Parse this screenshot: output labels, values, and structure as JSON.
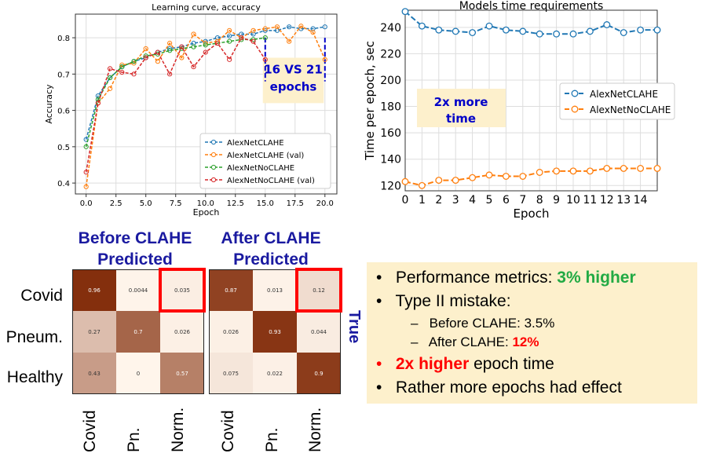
{
  "chart_data": [
    {
      "type": "line",
      "title": "Learning curve, accuracy",
      "xlabel": "Epoch",
      "ylabel": "Accuracy",
      "xlim": [
        -0.9,
        21.0
      ],
      "ylim": [
        0.37,
        0.865
      ],
      "xticks": [
        0.0,
        2.5,
        5.0,
        7.5,
        10.0,
        12.5,
        15.0,
        17.5,
        20.0
      ],
      "yticks": [
        0.4,
        0.5,
        0.6,
        0.7,
        0.8
      ],
      "grid": true,
      "legend": "bottom-right",
      "series": [
        {
          "name": "AlexNetCLAHE",
          "color": "#1f77b4",
          "x": [
            0,
            1,
            2,
            3,
            4,
            5,
            6,
            7,
            8,
            9,
            10,
            11,
            12,
            13,
            14,
            15,
            16,
            17,
            18,
            19,
            20
          ],
          "values": [
            0.52,
            0.64,
            0.69,
            0.72,
            0.735,
            0.745,
            0.76,
            0.77,
            0.775,
            0.785,
            0.79,
            0.8,
            0.805,
            0.81,
            0.81,
            0.82,
            0.82,
            0.83,
            0.825,
            0.825,
            0.83
          ]
        },
        {
          "name": "AlexNetCLAHE (val)",
          "color": "#ff7f0e",
          "x": [
            0,
            1,
            2,
            3,
            4,
            5,
            6,
            7,
            8,
            9,
            10,
            11,
            12,
            13,
            14,
            15,
            16,
            17,
            18,
            19,
            20
          ],
          "values": [
            0.39,
            0.62,
            0.66,
            0.725,
            0.73,
            0.77,
            0.735,
            0.785,
            0.745,
            0.81,
            0.785,
            0.79,
            0.82,
            0.8,
            0.82,
            0.825,
            0.83,
            0.79,
            0.832,
            0.815,
            0.74
          ]
        },
        {
          "name": "AlexNetNoCLAHE",
          "color": "#2ca02c",
          "x": [
            0,
            1,
            2,
            3,
            4,
            5,
            6,
            7,
            8,
            9,
            10,
            11,
            12,
            13,
            14,
            15
          ],
          "values": [
            0.5,
            0.63,
            0.69,
            0.72,
            0.735,
            0.75,
            0.755,
            0.765,
            0.77,
            0.775,
            0.78,
            0.785,
            0.79,
            0.795,
            0.795,
            0.8
          ]
        },
        {
          "name": "AlexNetNoCLAHE (val)",
          "color": "#d62728",
          "x": [
            0,
            1,
            2,
            3,
            4,
            5,
            6,
            7,
            8,
            9,
            10,
            11,
            12,
            13,
            14,
            15
          ],
          "values": [
            0.43,
            0.62,
            0.715,
            0.705,
            0.7,
            0.745,
            0.76,
            0.7,
            0.775,
            0.72,
            0.76,
            0.785,
            0.74,
            0.8,
            0.79,
            0.74
          ]
        }
      ],
      "annotation": {
        "text_line1": "16 VS 21",
        "text_line2": "epochs",
        "text_color": "#0000c8",
        "box_color": "#fdf0cc",
        "marker_x": [
          15,
          20
        ]
      }
    },
    {
      "type": "line",
      "title": "Models time requirements",
      "xlabel": "Epoch",
      "ylabel": "Time per epoch, sec",
      "xlim": [
        0,
        15
      ],
      "ylim": [
        116,
        253
      ],
      "xticks": [
        0,
        1,
        2,
        3,
        4,
        5,
        6,
        7,
        8,
        9,
        10,
        11,
        12,
        13,
        14
      ],
      "yticks": [
        120,
        140,
        160,
        180,
        200,
        220,
        240
      ],
      "grid": true,
      "legend": "right",
      "series": [
        {
          "name": "AlexNetCLAHE",
          "color": "#1f77b4",
          "x": [
            0,
            1,
            2,
            3,
            4,
            5,
            6,
            7,
            8,
            9,
            10,
            11,
            12,
            13,
            14,
            15
          ],
          "values": [
            252,
            241,
            238,
            237,
            236,
            241,
            238,
            237,
            235,
            235,
            235,
            237,
            242,
            236,
            238,
            238
          ]
        },
        {
          "name": "AlexNetNoCLAHE",
          "color": "#ff7f0e",
          "x": [
            0,
            1,
            2,
            3,
            4,
            5,
            6,
            7,
            8,
            9,
            10,
            11,
            12,
            13,
            14,
            15
          ],
          "values": [
            123,
            120,
            124,
            124,
            126,
            128,
            127,
            127,
            130,
            131,
            131,
            131,
            133,
            133,
            133,
            133
          ]
        }
      ],
      "annotation": {
        "text_line1": "2x more",
        "text_line2": "time",
        "text_color": "#0000c8",
        "box_color": "#fdf0cc"
      }
    },
    {
      "type": "heatmap",
      "title_line1": "Before CLAHE",
      "title_line2": "Predicted",
      "rows": [
        "Covid",
        "Pneum.",
        "Healthy"
      ],
      "columns": [
        "Covid",
        "Pn.",
        "Norm."
      ],
      "cells": [
        [
          "0.96",
          "0.0044",
          "0.035"
        ],
        [
          "0.27",
          "0.7",
          "0.026"
        ],
        [
          "0.43",
          "0",
          "0.57"
        ]
      ],
      "values": [
        [
          0.96,
          0.0044,
          0.035
        ],
        [
          0.27,
          0.7,
          0.026
        ],
        [
          0.43,
          0,
          0.57
        ]
      ],
      "highlight": [
        0,
        2
      ]
    },
    {
      "type": "heatmap",
      "title_line1": "After CLAHE",
      "title_line2": "Predicted",
      "rows": [
        "Covid",
        "Pneum.",
        "Healthy"
      ],
      "columns": [
        "Covid",
        "Pn.",
        "Norm."
      ],
      "cells": [
        [
          "0.87",
          "0.013",
          "0.12"
        ],
        [
          "0.026",
          "0.93",
          "0.044"
        ],
        [
          "0.075",
          "0.022",
          "0.9"
        ]
      ],
      "values": [
        [
          0.87,
          0.013,
          0.12
        ],
        [
          0.026,
          0.93,
          0.044
        ],
        [
          0.075,
          0.022,
          0.9
        ]
      ],
      "highlight": [
        0,
        2
      ]
    }
  ],
  "cm_side_label": "True",
  "bullets": {
    "b1_text": "Performance metrics: ",
    "b1_highlight": "3% higher",
    "b1_color": "#22aa44",
    "b2_text": "Type II mistake:",
    "b2_sub1": "Before CLAHE: 3.5%",
    "b2_sub2_text": "After CLAHE: ",
    "b2_sub2_highlight": "12%",
    "b3_highlight": "2x higher",
    "b3_text": " epoch time",
    "b4_text": "Rather more epochs had effect",
    "bullet_glyph": "•",
    "dash_glyph": "–",
    "red": "#ff0000"
  }
}
